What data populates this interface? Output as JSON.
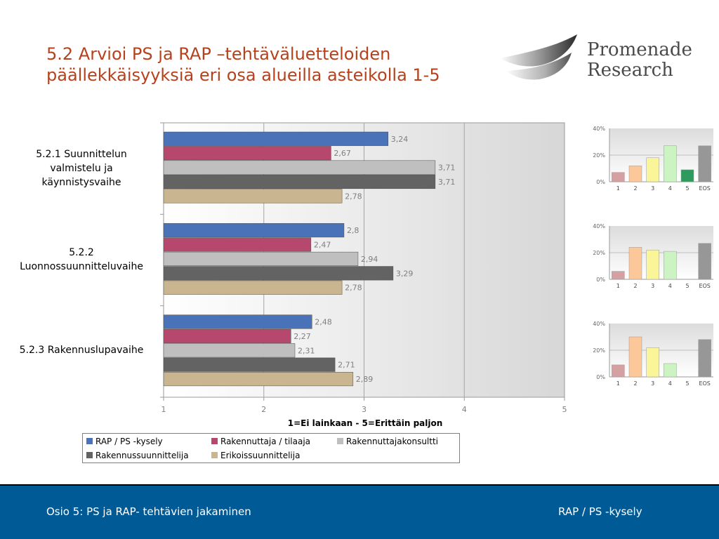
{
  "title": {
    "line1": "5.2 Arvioi PS ja RAP –tehtäväluetteloiden",
    "line2": "päällekkäisyyksiä eri osa alueilla asteikolla 1-5"
  },
  "logo": {
    "line1": "Promenade",
    "line2": "Research"
  },
  "category_labels": [
    [
      "5.2.1 Suunnittelun",
      "valmistelu ja",
      "käynnistysvaihe"
    ],
    [
      "5.2.2",
      "Luonnossuunnitteluvaihe"
    ],
    [
      "5.2.3 Rakennuslupavaihe"
    ]
  ],
  "colors": {
    "series": [
      "#4a72b8",
      "#b6486d",
      "#bfbfbf",
      "#636363",
      "#c9b690"
    ],
    "dist": [
      "#d4a0a2",
      "#fcc89a",
      "#fbf59a",
      "#ccf4c3",
      "#2e9a5e",
      "#979797"
    ],
    "footer_bg": "#005a95",
    "title": "#b5421c"
  },
  "chart_data": [
    {
      "type": "bar",
      "orientation": "horizontal",
      "categories": [
        "5.2.1 Suunnittelun valmistelu ja käynnistysvaihe",
        "5.2.2 Luonnossuunnitteluvaihe",
        "5.2.3 Rakennuslupavaihe"
      ],
      "series": [
        {
          "name": "RAP / PS -kysely",
          "values": [
            3.24,
            2.8,
            2.48
          ],
          "labels": [
            "3,24",
            "2,8",
            "2,48"
          ]
        },
        {
          "name": "Rakennuttaja / tilaaja",
          "values": [
            2.67,
            2.47,
            2.27
          ],
          "labels": [
            "2,67",
            "2,47",
            "2,27"
          ]
        },
        {
          "name": "Rakennuttajakonsultti",
          "values": [
            3.71,
            2.94,
            2.31
          ],
          "labels": [
            "3,71",
            "2,94",
            "2,31"
          ]
        },
        {
          "name": "Rakennussuunnittelija",
          "values": [
            3.71,
            3.29,
            2.71
          ],
          "labels": [
            "3,71",
            "3,29",
            "2,71"
          ]
        },
        {
          "name": "Erikoissuunnittelija",
          "values": [
            2.78,
            2.78,
            2.89
          ],
          "labels": [
            "2,78",
            "2,78",
            "2,89"
          ]
        }
      ],
      "xlim": [
        1,
        5
      ],
      "xticks": [
        "1",
        "2",
        "3",
        "4",
        "5"
      ],
      "xlabel": "1=Ei lainkaan - 5=Erittäin paljon",
      "grid": true,
      "legend": "bottom"
    },
    {
      "type": "bar",
      "categories": [
        "1",
        "2",
        "3",
        "4",
        "5",
        "EOS"
      ],
      "values": [
        7,
        12,
        18,
        27,
        9,
        27
      ],
      "yticks": [
        "0%",
        "20%",
        "40%"
      ],
      "ylim": [
        0,
        40
      ]
    },
    {
      "type": "bar",
      "categories": [
        "1",
        "2",
        "3",
        "4",
        "5",
        "EOS"
      ],
      "values": [
        6,
        24,
        22,
        21,
        0,
        27
      ],
      "yticks": [
        "0%",
        "20%",
        "40%"
      ],
      "ylim": [
        0,
        40
      ]
    },
    {
      "type": "bar",
      "categories": [
        "1",
        "2",
        "3",
        "4",
        "5",
        "EOS"
      ],
      "values": [
        9,
        30,
        22,
        10,
        0,
        28
      ],
      "yticks": [
        "0%",
        "20%",
        "40%"
      ],
      "ylim": [
        0,
        40
      ]
    }
  ],
  "footer": {
    "left": "Osio 5: PS ja RAP- tehtävien jakaminen",
    "right": "RAP / PS -kysely"
  }
}
